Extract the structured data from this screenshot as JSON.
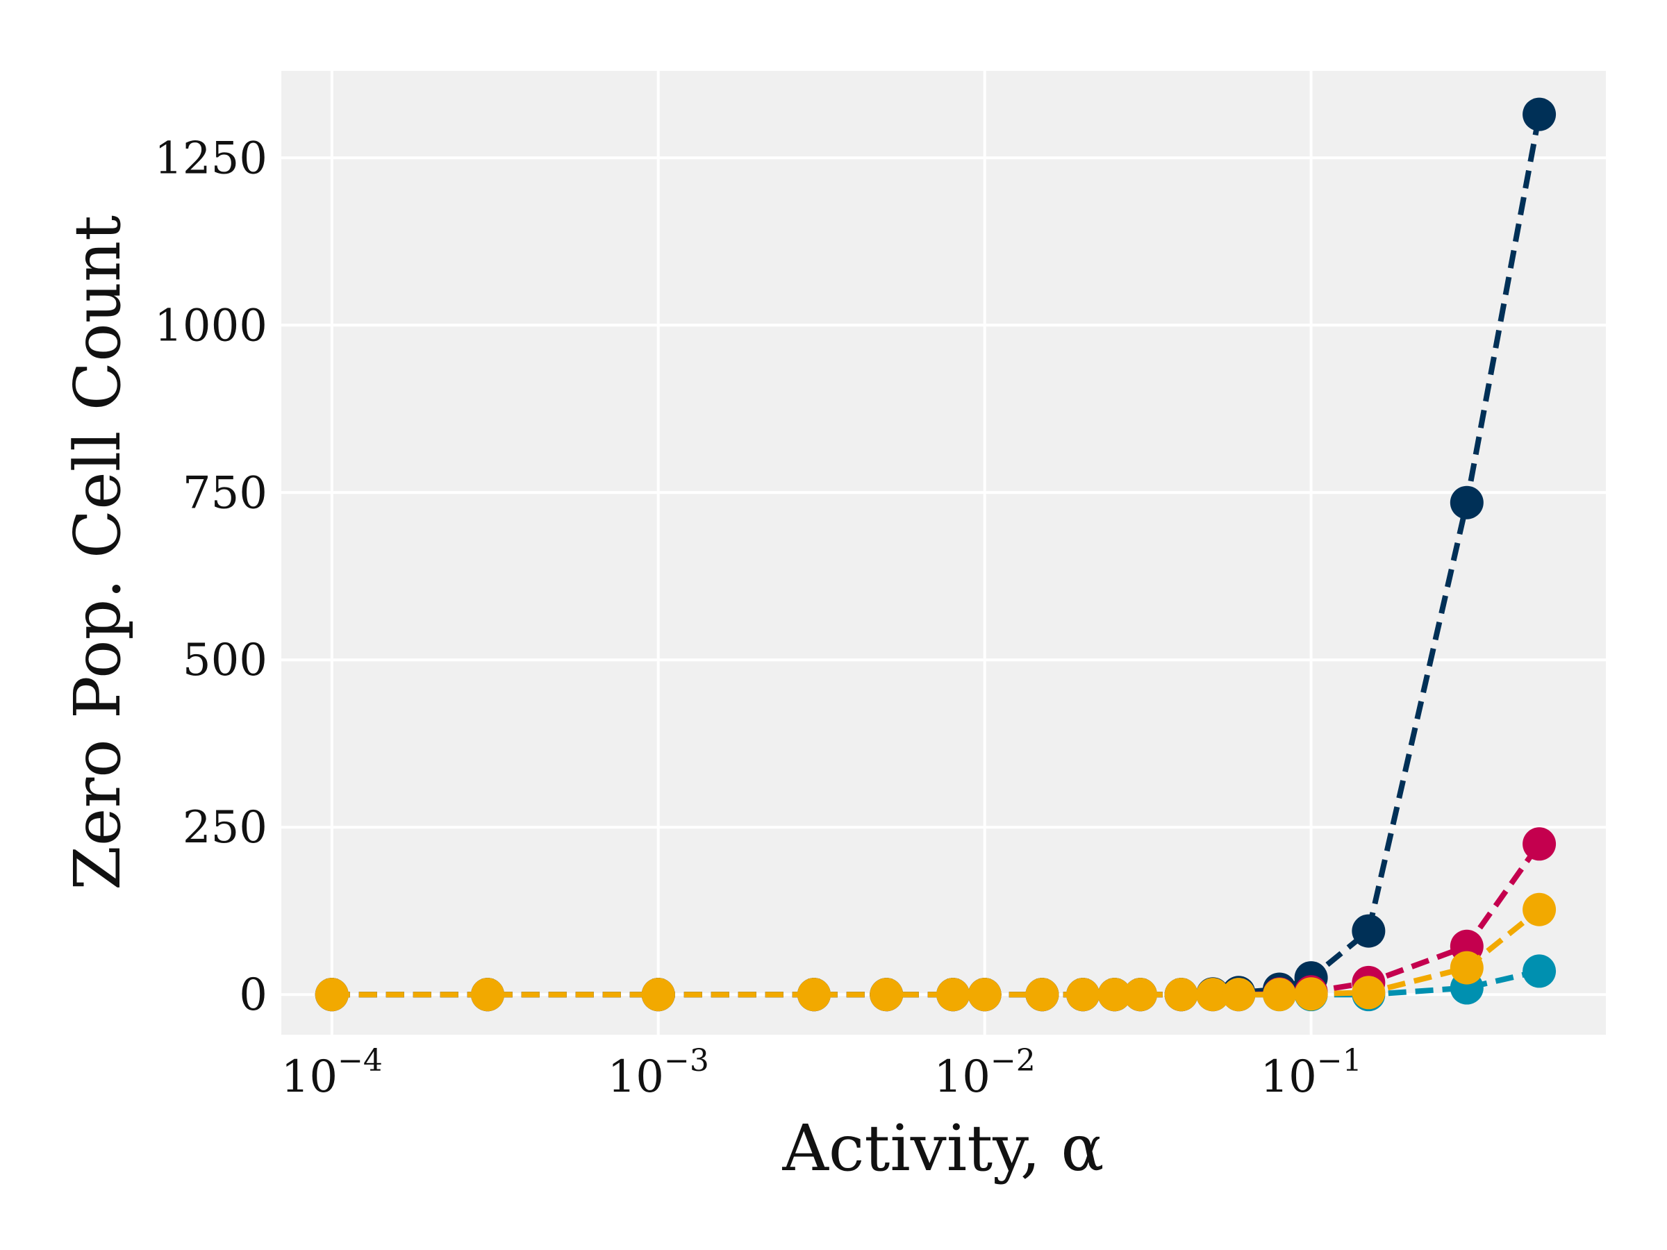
{
  "chart_data": {
    "type": "line",
    "xscale": "log",
    "xlabel": "Activity, α",
    "ylabel": "Zero Pop. Cell Count",
    "xlim": [
      7e-05,
      0.8
    ],
    "ylim": [
      -60,
      1380
    ],
    "grid": true,
    "legend": "none",
    "background_color": "#f0f0f0",
    "x_ticks": [
      {
        "value": 0.0001,
        "base": "10",
        "exp": "−4"
      },
      {
        "value": 0.001,
        "base": "10",
        "exp": "−3"
      },
      {
        "value": 0.01,
        "base": "10",
        "exp": "−2"
      },
      {
        "value": 0.1,
        "base": "10",
        "exp": "−1"
      }
    ],
    "y_ticks": [
      {
        "value": 0,
        "label": "0"
      },
      {
        "value": 250,
        "label": "250"
      },
      {
        "value": 500,
        "label": "500"
      },
      {
        "value": 750,
        "label": "750"
      },
      {
        "value": 1000,
        "label": "1000"
      },
      {
        "value": 1250,
        "label": "1250"
      }
    ],
    "x": [
      0.0001,
      0.0003,
      0.001,
      0.003,
      0.005,
      0.008,
      0.01,
      0.015,
      0.02,
      0.025,
      0.03,
      0.04,
      0.05,
      0.06,
      0.08,
      0.1,
      0.15,
      0.3,
      0.5
    ],
    "series": [
      {
        "color": "#003057",
        "values": [
          0,
          0,
          0,
          0,
          0,
          0,
          0,
          0,
          0,
          0,
          0,
          0,
          1,
          3,
          8,
          25,
          95,
          735,
          1315
        ]
      },
      {
        "color": "#c4004e",
        "values": [
          0,
          0,
          0,
          0,
          0,
          0,
          0,
          0,
          0,
          0,
          0,
          0,
          0,
          0,
          1,
          4,
          18,
          72,
          225
        ]
      },
      {
        "color": "#0090b0",
        "values": [
          0,
          0,
          0,
          0,
          0,
          0,
          0,
          0,
          0,
          0,
          0,
          0,
          0,
          0,
          0,
          0,
          0,
          10,
          35
        ]
      },
      {
        "color": "#f2a900",
        "values": [
          0,
          0,
          0,
          0,
          0,
          0,
          0,
          0,
          0,
          0,
          0,
          0,
          0,
          0,
          0,
          1,
          3,
          40,
          127
        ]
      }
    ]
  }
}
